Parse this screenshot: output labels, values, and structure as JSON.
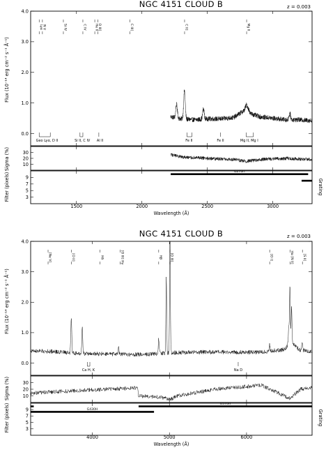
{
  "chart_data": [
    {
      "type": "line",
      "title": "NGC 4151 CLOUD B",
      "redshift_label": "z = 0.003",
      "xlabel": "Wavelength (Å)",
      "xlim": [
        1150,
        3300
      ],
      "xticks": [
        1500,
        2000,
        2500,
        3000
      ],
      "flux": {
        "ylabel": "Flux (10⁻¹⁴ erg cm⁻² s⁻¹ Å⁻¹)",
        "ylim": [
          -0.4,
          4.0
        ],
        "yticks": [
          "0.0",
          "1.0",
          "2.0",
          "3.0",
          "4.0"
        ],
        "series": {
          "x_range": [
            2220,
            3300
          ],
          "base_profile": [
            [
              2220,
              0.55
            ],
            [
              2300,
              0.48
            ],
            [
              2400,
              0.45
            ],
            [
              2500,
              0.48
            ],
            [
              2600,
              0.48
            ],
            [
              2700,
              0.52
            ],
            [
              2780,
              0.75
            ],
            [
              2800,
              0.95
            ],
            [
              2830,
              0.65
            ],
            [
              2900,
              0.55
            ],
            [
              3000,
              0.5
            ],
            [
              3100,
              0.45
            ],
            [
              3200,
              0.45
            ],
            [
              3300,
              0.42
            ]
          ],
          "peaks": [
            [
              2325,
              1.4
            ],
            [
              2265,
              0.95
            ],
            [
              2470,
              0.8
            ],
            [
              3130,
              0.65
            ]
          ],
          "noise": 0.08
        },
        "upper_lines": [
          {
            "wl": 1215,
            "label": "Lyα",
            "bracket": true
          },
          {
            "wl": 1240,
            "label": "N V"
          },
          {
            "wl": 1400,
            "label": "Si IV"
          },
          {
            "wl": 1549,
            "label": "C IV"
          },
          {
            "wl": 1640,
            "label": "He II"
          },
          {
            "wl": 1663,
            "label": "O III]"
          },
          {
            "wl": 1909,
            "label": "C III]"
          },
          {
            "wl": 2326,
            "label": "C II]"
          },
          {
            "wl": 2800,
            "label": "Mg II"
          }
        ],
        "absorption": [
          {
            "label": "Geo Lyα, D II",
            "wl1": 1215,
            "wl2": 1300,
            "label_wl": 1275
          },
          {
            "label": "Si II, C IV",
            "wl1": 1527,
            "wl2": 1549,
            "label_wl": 1545
          },
          {
            "label": "Al II",
            "wl1": 1671,
            "wl2": 1671,
            "label_wl": 1680
          },
          {
            "label": "Fe II",
            "wl1": 2344,
            "wl2": 2382,
            "label_wl": 2360
          },
          {
            "label": "Fe II",
            "wl1": 2600,
            "wl2": 2600,
            "label_wl": 2600
          },
          {
            "label": "Mg II, Mg I",
            "wl1": 2796,
            "wl2": 2852,
            "label_wl": 2820
          }
        ]
      },
      "sigma": {
        "ylabel": "Sigma (%)",
        "yticks": [
          "10",
          "20",
          "30"
        ],
        "ylim": [
          0,
          40
        ],
        "series": {
          "x_range": [
            2220,
            3300
          ],
          "base_profile": [
            [
              2220,
              26
            ],
            [
              2300,
              22
            ],
            [
              2500,
              20
            ],
            [
              2700,
              18
            ],
            [
              2800,
              15
            ],
            [
              2900,
              18
            ],
            [
              3100,
              20
            ],
            [
              3200,
              19
            ],
            [
              3300,
              18
            ]
          ],
          "noise": 3
        }
      },
      "filter": {
        "ylabel": "Filter (pixels)",
        "right_label": "Grating",
        "yticks": [
          "3",
          "5",
          "7",
          "9"
        ],
        "ylim": [
          1,
          11
        ],
        "gratings": [
          {
            "name": "G270H",
            "from": 2220,
            "to": 3270,
            "level": 10
          }
        ],
        "filter_segments": [
          {
            "from": 3220,
            "to": 3300,
            "level": 8
          }
        ]
      }
    },
    {
      "type": "line",
      "title": "NGC 4151 CLOUD B",
      "redshift_label": "z = 0.003",
      "xlabel": "Wavelength (Å)",
      "xlim": [
        3200,
        6850
      ],
      "xticks": [
        4000,
        5000,
        6000
      ],
      "flux": {
        "ylabel": "Flux (10⁻¹⁴ erg cm⁻² s⁻¹ Å⁻¹)",
        "ylim": [
          -0.4,
          4.0
        ],
        "yticks": [
          "0.0",
          "1.0",
          "2.0",
          "3.0",
          "4.0"
        ],
        "series": {
          "x_range": [
            3200,
            6850
          ],
          "base_profile": [
            [
              3200,
              0.4
            ],
            [
              3500,
              0.38
            ],
            [
              3800,
              0.32
            ],
            [
              4100,
              0.3
            ],
            [
              4500,
              0.28
            ],
            [
              4800,
              0.3
            ],
            [
              5000,
              0.34
            ],
            [
              5400,
              0.36
            ],
            [
              5800,
              0.36
            ],
            [
              6200,
              0.36
            ],
            [
              6500,
              0.45
            ],
            [
              6563,
              0.7
            ],
            [
              6700,
              0.42
            ],
            [
              6850,
              0.38
            ]
          ],
          "peaks": [
            [
              3727,
              1.5
            ],
            [
              3869,
              1.15
            ],
            [
              4340,
              0.55
            ],
            [
              4861,
              0.8
            ],
            [
              4959,
              2.9
            ],
            [
              5007,
              4.2
            ],
            [
              6300,
              0.6
            ],
            [
              6548,
              1.2
            ],
            [
              6563,
              2.55
            ],
            [
              6584,
              1.8
            ],
            [
              6720,
              0.7
            ]
          ],
          "noise": 0.07
        },
        "upper_lines": [
          {
            "wl": 3426,
            "label": "[Ne V]",
            "bracket": true
          },
          {
            "wl": 3727,
            "label": "[O II]"
          },
          {
            "wl": 4101,
            "label": "Hδ"
          },
          {
            "wl": 4363,
            "label": "[O III] Hγ"
          },
          {
            "wl": 4861,
            "label": "Hβ"
          },
          {
            "wl": 5007,
            "label": "[O III]"
          },
          {
            "wl": 6300,
            "label": "[O I]"
          },
          {
            "wl": 6563,
            "label": "Hα [N II]"
          },
          {
            "wl": 6725,
            "label": "[S II]"
          }
        ],
        "absorption": [
          {
            "label": "Ca H, K",
            "wl1": 3934,
            "wl2": 3968,
            "label_wl": 3950
          },
          {
            "label": "Na D",
            "wl1": 5892,
            "wl2": 5892,
            "label_wl": 5892
          }
        ]
      },
      "sigma": {
        "ylabel": "Sigma (%)",
        "yticks": [
          "10",
          "20",
          "30"
        ],
        "ylim": [
          0,
          40
        ],
        "series": {
          "x_range": [
            3200,
            6850
          ],
          "base_profile": [
            [
              3200,
              14
            ],
            [
              3500,
              16
            ],
            [
              3800,
              18
            ],
            [
              4200,
              20
            ],
            [
              4590,
              22
            ],
            [
              4600,
              10
            ],
            [
              4900,
              8
            ],
            [
              5000,
              4
            ],
            [
              5100,
              10
            ],
            [
              5600,
              20
            ],
            [
              6200,
              26
            ],
            [
              6560,
              6
            ],
            [
              6700,
              20
            ],
            [
              6850,
              22
            ]
          ],
          "noise": 3
        }
      },
      "filter": {
        "ylabel": "Filter (pixels)",
        "right_label": "Grating",
        "yticks": [
          "3",
          "5",
          "7",
          "9"
        ],
        "ylim": [
          1,
          11
        ],
        "gratings": [
          {
            "name": "G430H",
            "from": 3200,
            "to": 3240,
            "level": 10
          },
          {
            "name": "G570H",
            "from": 4600,
            "to": 6850,
            "level": 10
          }
        ],
        "filter_segments": [
          {
            "name": "G430H",
            "from": 3200,
            "to": 4800,
            "level": 8.3
          }
        ]
      }
    }
  ]
}
